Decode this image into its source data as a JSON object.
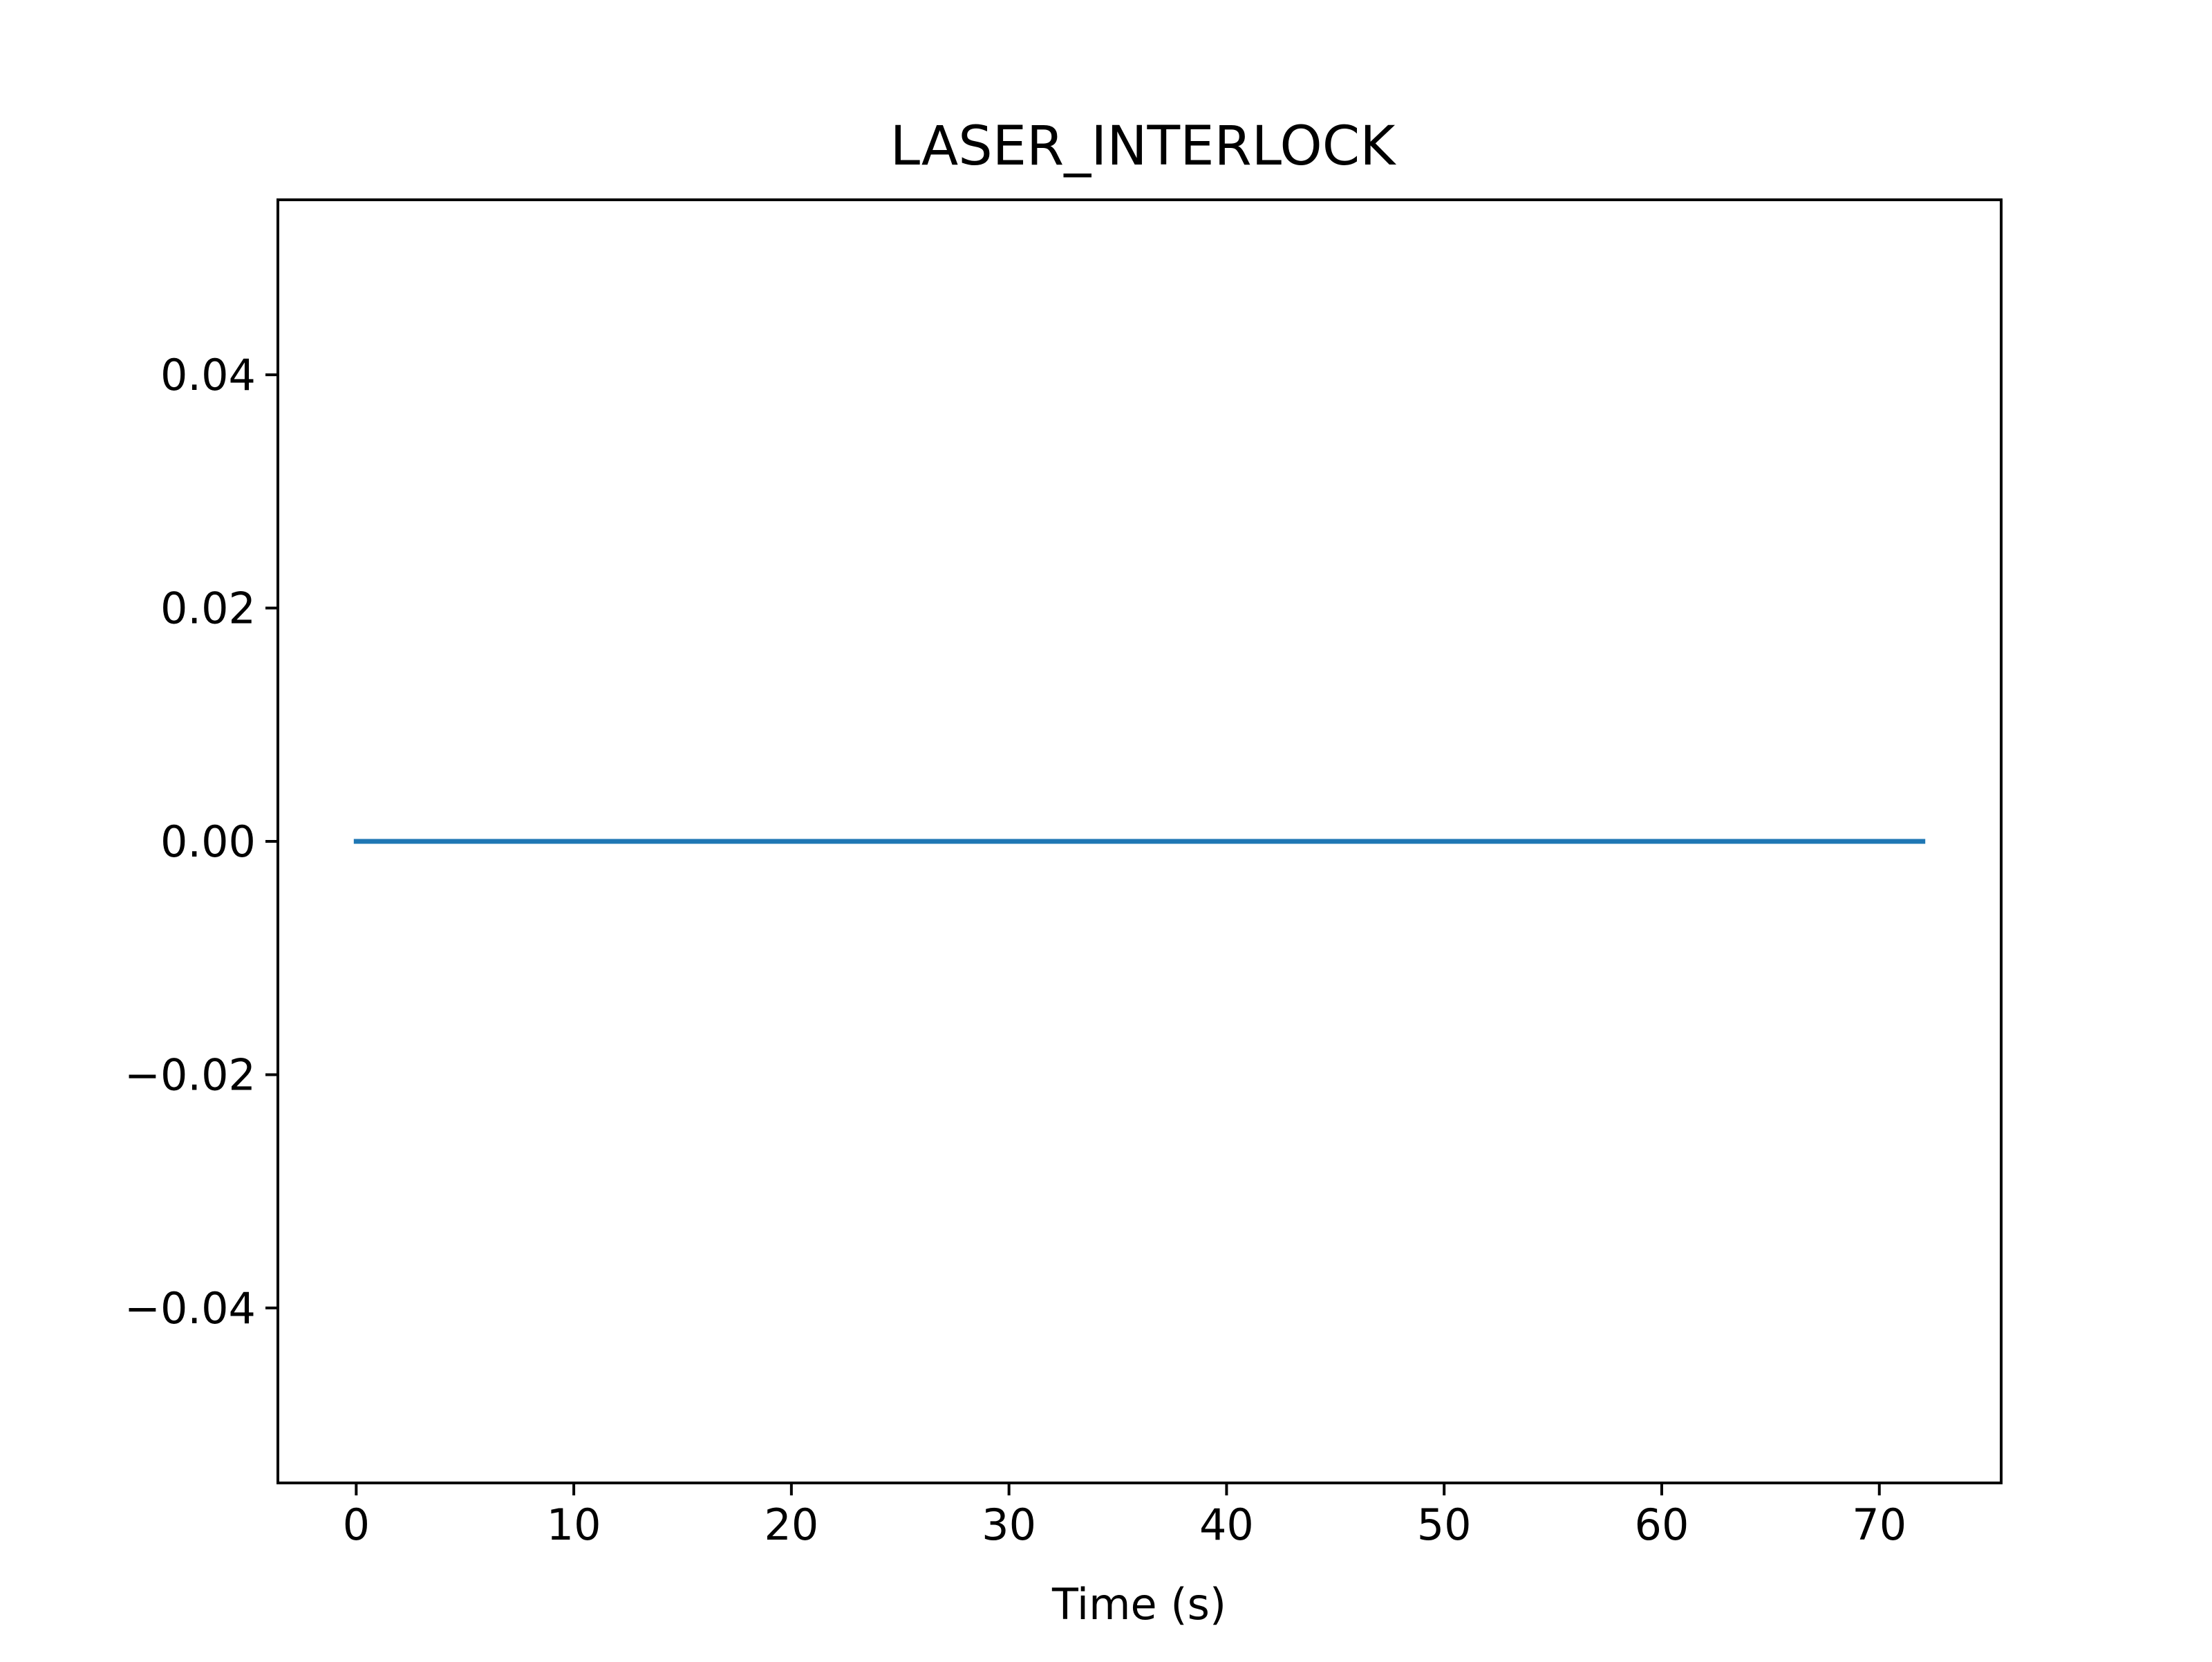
{
  "chart_data": {
    "type": "line",
    "title": "LASER_INTERLOCK",
    "xlabel": "Time (s)",
    "ylabel": "",
    "xlim": [
      -3.6,
      75.6
    ],
    "ylim": [
      -0.055,
      0.055
    ],
    "x_ticks": [
      0,
      10,
      20,
      30,
      40,
      50,
      60,
      70
    ],
    "x_tick_labels": [
      "0",
      "10",
      "20",
      "30",
      "40",
      "50",
      "60",
      "70"
    ],
    "y_ticks": [
      -0.04,
      -0.02,
      0.0,
      0.02,
      0.04
    ],
    "y_tick_labels": [
      "−0.04",
      "−0.02",
      "0.00",
      "0.02",
      "0.04"
    ],
    "grid": false,
    "series": [
      {
        "color": "#1f77b4",
        "x": [
          0,
          72
        ],
        "y": [
          0,
          0
        ]
      }
    ]
  }
}
